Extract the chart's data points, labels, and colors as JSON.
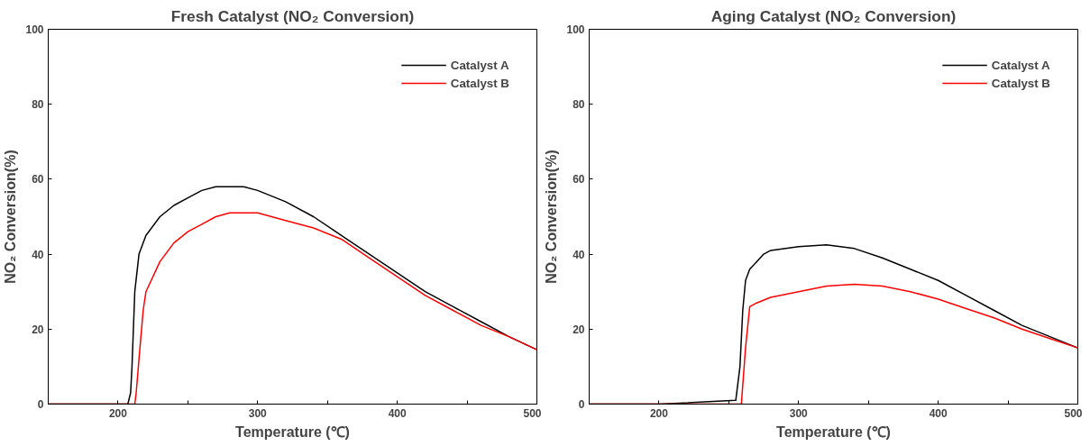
{
  "chart_data": [
    {
      "type": "line",
      "title": "Fresh Catalyst (NO₂ Conversion)",
      "xlabel": "Temperature (℃)",
      "ylabel": "NO₂ Conversion(%)",
      "xlim": [
        150,
        500
      ],
      "ylim": [
        0,
        100
      ],
      "xticks": [
        {
          "value": 150,
          "label": null
        },
        200,
        {
          "value": 250,
          "label": null
        },
        300,
        {
          "value": 350,
          "label": null
        },
        400,
        {
          "value": 450,
          "label": null
        },
        500
      ],
      "yticks": [
        0,
        20,
        40,
        60,
        80,
        100
      ],
      "legend": "top right",
      "grid": false,
      "line_style": "solid",
      "marker": "none",
      "series": [
        {
          "name": "Catalyst A",
          "color": "#000000",
          "x": [
            150,
            180,
            207,
            209,
            210,
            212,
            215,
            220,
            230,
            240,
            250,
            260,
            270,
            280,
            290,
            300,
            320,
            340,
            360,
            380,
            400,
            420,
            440,
            460,
            480,
            500
          ],
          "values": [
            0,
            0,
            0,
            3,
            10,
            30,
            40,
            45,
            50,
            53,
            55,
            57,
            58,
            58,
            58,
            57,
            54,
            50,
            45,
            40,
            35,
            30,
            26,
            22,
            18,
            14.5
          ]
        },
        {
          "name": "Catalyst B",
          "color": "#ff0000",
          "x": [
            150,
            180,
            212,
            213,
            215,
            218,
            220,
            230,
            240,
            250,
            260,
            270,
            280,
            300,
            320,
            340,
            360,
            380,
            400,
            420,
            440,
            460,
            480,
            500
          ],
          "values": [
            0,
            0,
            0,
            3,
            12,
            25,
            30,
            38,
            43,
            46,
            48,
            50,
            51,
            51,
            49,
            47,
            44,
            39,
            34,
            29,
            25,
            21,
            18,
            14.5
          ]
        }
      ]
    },
    {
      "type": "line",
      "title": "Aging Catalyst (NO₂ Conversion)",
      "xlabel": "Temperature (℃)",
      "ylabel": "NO₂ Conversion(%)",
      "xlim": [
        150,
        500
      ],
      "ylim": [
        0,
        100
      ],
      "xticks": [
        {
          "value": 150,
          "label": null
        },
        200,
        {
          "value": 250,
          "label": null
        },
        300,
        {
          "value": 350,
          "label": null
        },
        400,
        {
          "value": 450,
          "label": null
        },
        500
      ],
      "yticks": [
        0,
        20,
        40,
        60,
        80,
        100
      ],
      "legend": "top right",
      "grid": false,
      "line_style": "solid",
      "marker": "none",
      "series": [
        {
          "name": "Catalyst A",
          "color": "#000000",
          "x": [
            150,
            200,
            255,
            258,
            260,
            262,
            265,
            270,
            275,
            280,
            300,
            320,
            340,
            360,
            380,
            400,
            420,
            440,
            460,
            480,
            500
          ],
          "values": [
            0,
            0,
            1,
            10,
            25,
            33,
            36,
            38,
            40,
            41,
            42,
            42.5,
            41.5,
            39,
            36,
            33,
            29,
            25,
            21,
            18,
            15
          ]
        },
        {
          "name": "Catalyst B",
          "color": "#ff0000",
          "x": [
            150,
            200,
            259,
            260,
            262,
            265,
            270,
            280,
            300,
            320,
            340,
            360,
            380,
            400,
            420,
            440,
            460,
            480,
            500
          ],
          "values": [
            0,
            0,
            0,
            5,
            15,
            26,
            27,
            28.5,
            30,
            31.5,
            32,
            31.5,
            30,
            28,
            25.5,
            23,
            20,
            17.5,
            15
          ]
        }
      ]
    }
  ]
}
